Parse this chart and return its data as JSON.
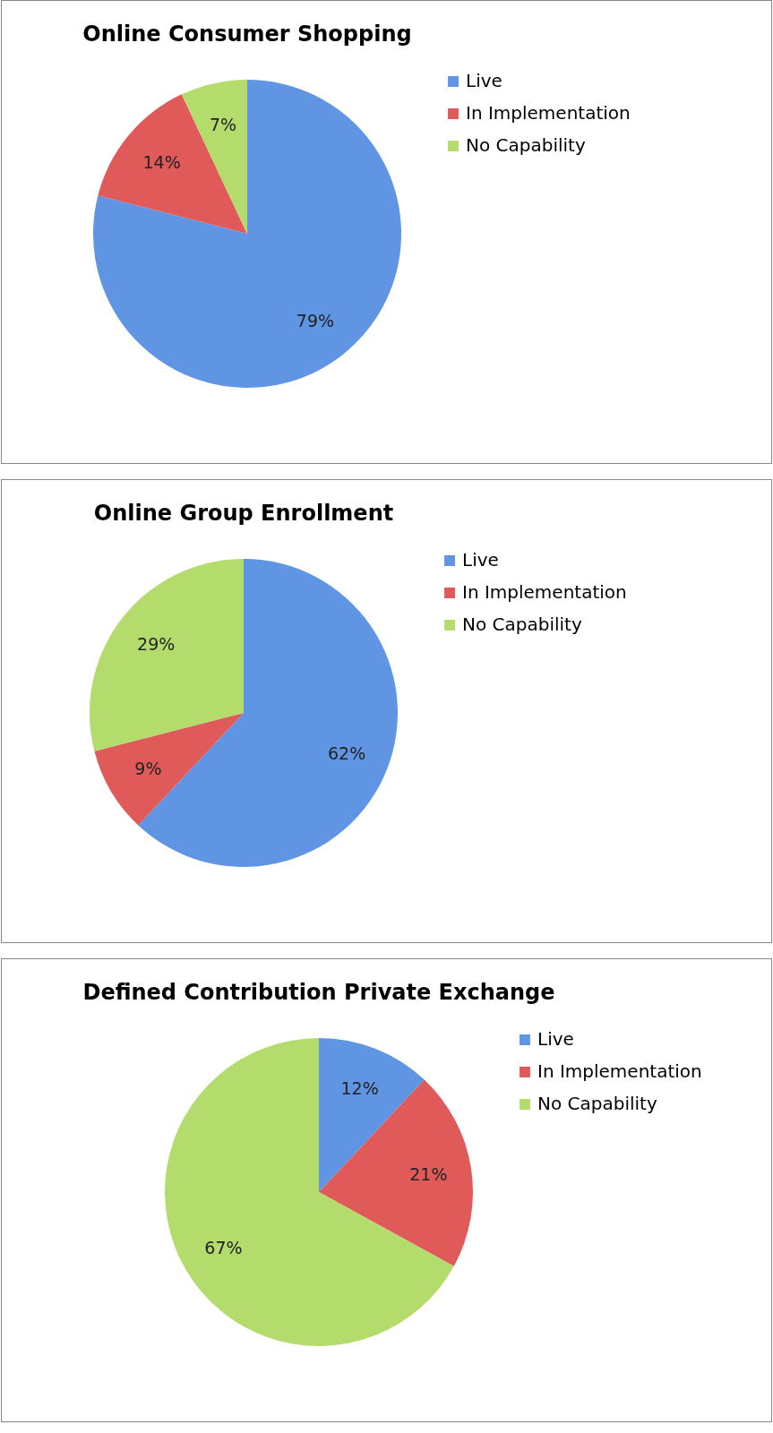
{
  "chart_data": [
    {
      "type": "pie",
      "title": "Online Consumer Shopping",
      "categories": [
        "Live",
        "In Implementation",
        "No Capability"
      ],
      "values": [
        79,
        14,
        7
      ],
      "value_labels": [
        "79%",
        "14%",
        "7%"
      ],
      "colors": [
        "#5f95e3",
        "#e05a5a",
        "#b4dc6c"
      ],
      "legend": "right"
    },
    {
      "type": "pie",
      "title": "Online Group Enrollment",
      "categories": [
        "Live",
        "In Implementation",
        "No Capability"
      ],
      "values": [
        62,
        9,
        29
      ],
      "value_labels": [
        "62%",
        "9%",
        "29%"
      ],
      "colors": [
        "#5f95e3",
        "#e05a5a",
        "#b4dc6c"
      ],
      "legend": "right"
    },
    {
      "type": "pie",
      "title": "Defined Contribution Private Exchange",
      "categories": [
        "Live",
        "In Implementation",
        "No Capability"
      ],
      "values": [
        12,
        21,
        67
      ],
      "value_labels": [
        "12%",
        "21%",
        "67%"
      ],
      "colors": [
        "#5f95e3",
        "#e05a5a",
        "#b4dc6c"
      ],
      "legend": "right"
    }
  ]
}
